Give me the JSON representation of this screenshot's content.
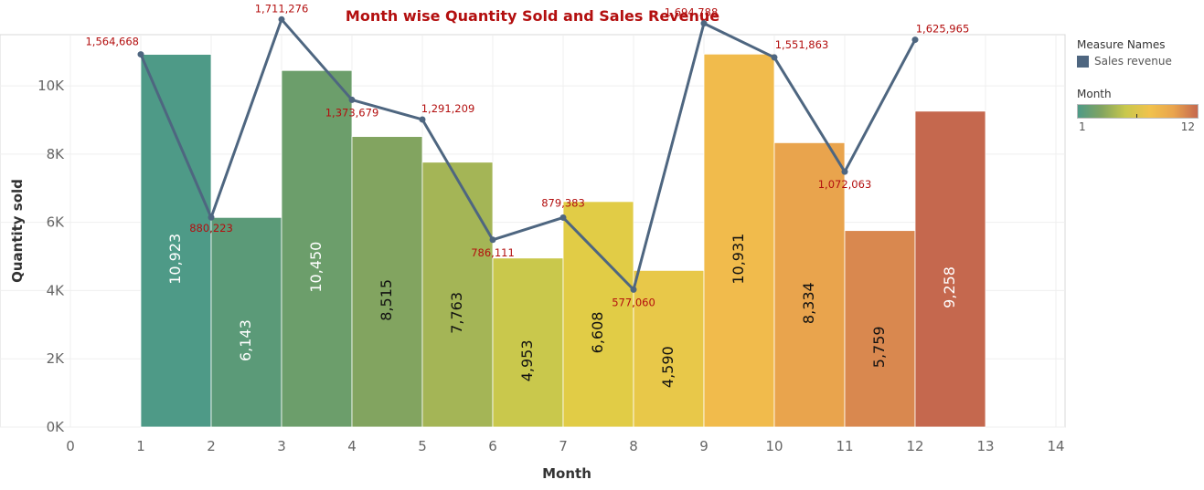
{
  "chart_data": {
    "type": "bar",
    "title": "Month wise Quantity Sold and Sales Revenue",
    "xlabel": "Month",
    "ylabel": "Quantity sold",
    "xlim": [
      0,
      14
    ],
    "ylim": [
      0,
      11500
    ],
    "x_ticks": [
      "0",
      "1",
      "2",
      "3",
      "4",
      "5",
      "6",
      "7",
      "8",
      "9",
      "10",
      "11",
      "12",
      "13",
      "14"
    ],
    "y_ticks": [
      {
        "value": 0,
        "label": "0K"
      },
      {
        "value": 2000,
        "label": "2K"
      },
      {
        "value": 4000,
        "label": "4K"
      },
      {
        "value": 6000,
        "label": "6K"
      },
      {
        "value": 8000,
        "label": "8K"
      },
      {
        "value": 10000,
        "label": "10K"
      }
    ],
    "grid": true,
    "months": [
      1,
      2,
      3,
      4,
      5,
      6,
      7,
      8,
      9,
      10,
      11,
      12
    ],
    "quantity_sold": [
      10923,
      6143,
      10450,
      8515,
      7763,
      4953,
      6608,
      4590,
      10931,
      8334,
      5759,
      9258
    ],
    "quantity_labels": [
      "10,923",
      "6,143",
      "10,450",
      "8,515",
      "7,763",
      "4,953",
      "6,608",
      "4,590",
      "10,931",
      "8,334",
      "5,759",
      "9,258"
    ],
    "sales_revenue": [
      1564668,
      880223,
      1711276,
      1373679,
      1291209,
      786111,
      879383,
      577060,
      1694788,
      1551863,
      1072063,
      1625965
    ],
    "revenue_labels": [
      "1,564,668",
      "880,223",
      "1,711,276",
      "1,373,679",
      "1,291,209",
      "786,111",
      "879,383",
      "577,060",
      "1,694,788",
      "1,551,863",
      "1,072,063",
      "1,625,965"
    ],
    "series": [
      {
        "name": "Sales revenue",
        "type": "line",
        "color": "#4e6680"
      }
    ],
    "bar_colors": [
      "#4e9a87",
      "#5b9a78",
      "#6c9e6b",
      "#82a460",
      "#a4b556",
      "#c9c84c",
      "#e1cc46",
      "#e8c849",
      "#f1bb4c",
      "#e9a44d",
      "#d9884f",
      "#c5684e"
    ],
    "bar_label_colors": [
      "#ffffff",
      "#ffffff",
      "#ffffff",
      "#111111",
      "#111111",
      "#111111",
      "#111111",
      "#111111",
      "#111111",
      "#111111",
      "#111111",
      "#ffffff"
    ],
    "legend": {
      "measure_title": "Measure Names",
      "measure_item": "Sales revenue",
      "color_title": "Month",
      "color_min": "1",
      "color_max": "12",
      "position": "right"
    }
  }
}
